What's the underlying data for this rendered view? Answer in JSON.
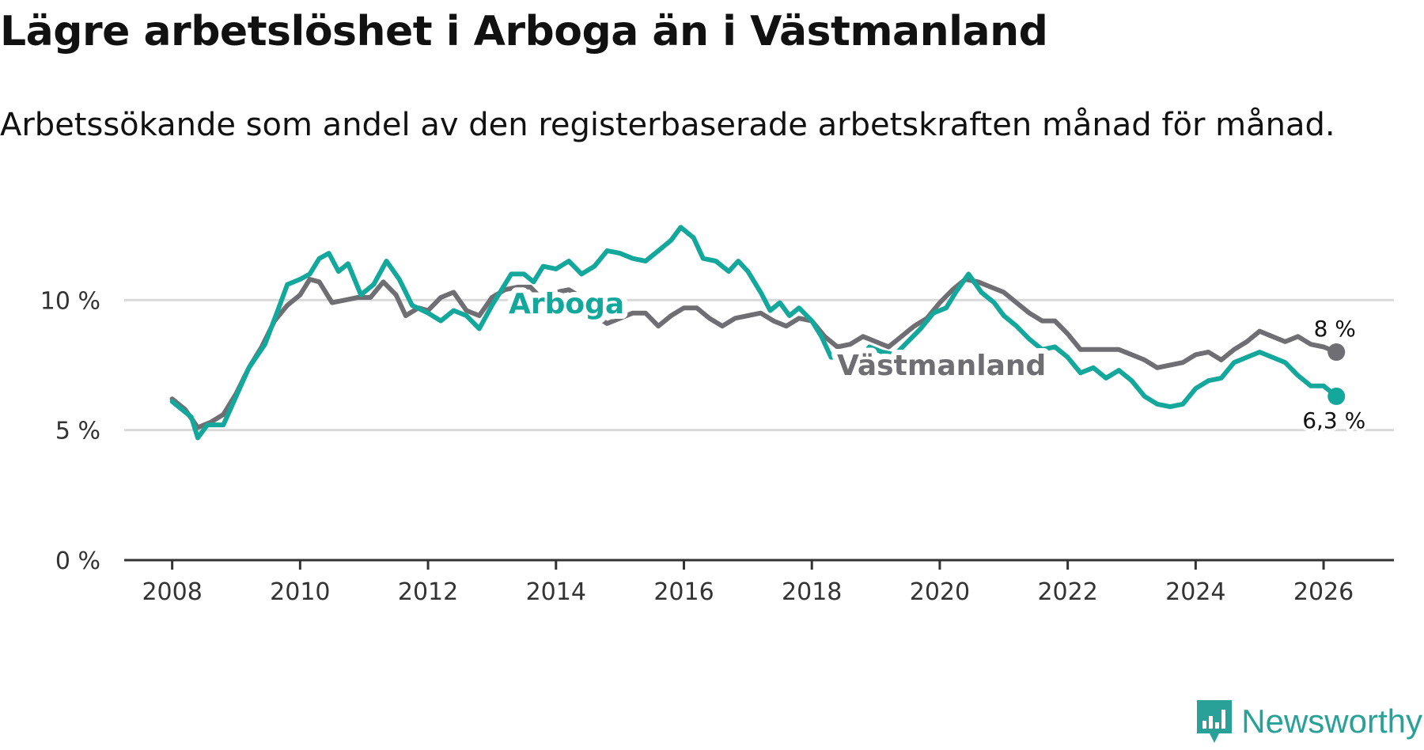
{
  "title": "Lägre arbetslöshet i Arboga än i Västmanland",
  "subtitle": "Arbetssökande som andel av den registerbaserade arbetskraften månad för månad.",
  "brand": {
    "name": "Newsworthy",
    "color": "#2aa198"
  },
  "colors": {
    "arboga": "#14a89c",
    "vastmanland": "#6f6e73",
    "grid": "#d9d9d9",
    "axis": "#333333"
  },
  "chart_data": {
    "type": "line",
    "title": "Lägre arbetslöshet i Arboga än i Västmanland",
    "subtitle": "Arbetssökande som andel av den registerbaserade arbetskraften månad för månad.",
    "xlabel": "",
    "ylabel": "",
    "xlim": [
      2007.25,
      2027.1
    ],
    "ylim": [
      0,
      11.5
    ],
    "y_ticks": [
      {
        "value": 0,
        "label": "0 %"
      },
      {
        "value": 5,
        "label": "5 %"
      },
      {
        "value": 10,
        "label": "10 %"
      }
    ],
    "x_ticks": [
      {
        "value": 2008,
        "label": "2008"
      },
      {
        "value": 2010,
        "label": "2010"
      },
      {
        "value": 2012,
        "label": "2012"
      },
      {
        "value": 2014,
        "label": "2014"
      },
      {
        "value": 2016,
        "label": "2016"
      },
      {
        "value": 2018,
        "label": "2018"
      },
      {
        "value": 2020,
        "label": "2020"
      },
      {
        "value": 2022,
        "label": "2022"
      },
      {
        "value": 2024,
        "label": "2024"
      },
      {
        "value": 2026,
        "label": "2026"
      }
    ],
    "grid": true,
    "series": [
      {
        "name": "Arboga",
        "label": "Arboga",
        "end_label": "6,3 %",
        "points": [
          [
            2008.0,
            6.1
          ],
          [
            2008.15,
            5.8
          ],
          [
            2008.3,
            5.5
          ],
          [
            2008.4,
            4.7
          ],
          [
            2008.55,
            5.2
          ],
          [
            2008.8,
            5.2
          ],
          [
            2009.0,
            6.3
          ],
          [
            2009.2,
            7.4
          ],
          [
            2009.45,
            8.3
          ],
          [
            2009.65,
            9.6
          ],
          [
            2009.8,
            10.6
          ],
          [
            2010.0,
            10.8
          ],
          [
            2010.15,
            11.0
          ],
          [
            2010.3,
            11.6
          ],
          [
            2010.45,
            11.8
          ],
          [
            2010.6,
            11.1
          ],
          [
            2010.75,
            11.4
          ],
          [
            2010.95,
            10.2
          ],
          [
            2011.15,
            10.6
          ],
          [
            2011.35,
            11.5
          ],
          [
            2011.55,
            10.8
          ],
          [
            2011.75,
            9.8
          ],
          [
            2012.0,
            9.5
          ],
          [
            2012.2,
            9.2
          ],
          [
            2012.4,
            9.6
          ],
          [
            2012.6,
            9.4
          ],
          [
            2012.8,
            8.9
          ],
          [
            2013.0,
            9.8
          ],
          [
            2013.15,
            10.4
          ],
          [
            2013.3,
            11.0
          ],
          [
            2013.5,
            11.0
          ],
          [
            2013.65,
            10.7
          ],
          [
            2013.8,
            11.3
          ],
          [
            2014.0,
            11.2
          ],
          [
            2014.2,
            11.5
          ],
          [
            2014.4,
            11.0
          ],
          [
            2014.6,
            11.3
          ],
          [
            2014.8,
            11.9
          ],
          [
            2015.0,
            11.8
          ],
          [
            2015.2,
            11.6
          ],
          [
            2015.4,
            11.5
          ],
          [
            2015.6,
            11.9
          ],
          [
            2015.8,
            12.3
          ],
          [
            2015.95,
            12.8
          ],
          [
            2016.15,
            12.4
          ],
          [
            2016.3,
            11.6
          ],
          [
            2016.5,
            11.5
          ],
          [
            2016.7,
            11.1
          ],
          [
            2016.85,
            11.5
          ],
          [
            2017.0,
            11.1
          ],
          [
            2017.2,
            10.3
          ],
          [
            2017.35,
            9.6
          ],
          [
            2017.5,
            9.9
          ],
          [
            2017.65,
            9.4
          ],
          [
            2017.8,
            9.7
          ],
          [
            2018.0,
            9.2
          ],
          [
            2018.15,
            8.6
          ],
          [
            2018.3,
            7.8
          ],
          [
            2018.5,
            7.8
          ],
          [
            2018.7,
            7.6
          ],
          [
            2018.9,
            8.2
          ],
          [
            2019.1,
            8.0
          ],
          [
            2019.3,
            7.9
          ],
          [
            2019.5,
            8.4
          ],
          [
            2019.7,
            8.9
          ],
          [
            2019.9,
            9.5
          ],
          [
            2020.1,
            9.7
          ],
          [
            2020.25,
            10.3
          ],
          [
            2020.45,
            11.0
          ],
          [
            2020.65,
            10.3
          ],
          [
            2020.85,
            9.9
          ],
          [
            2021.0,
            9.4
          ],
          [
            2021.2,
            9.0
          ],
          [
            2021.4,
            8.5
          ],
          [
            2021.6,
            8.1
          ],
          [
            2021.8,
            8.2
          ],
          [
            2022.0,
            7.8
          ],
          [
            2022.2,
            7.2
          ],
          [
            2022.4,
            7.4
          ],
          [
            2022.6,
            7.0
          ],
          [
            2022.8,
            7.3
          ],
          [
            2023.0,
            6.9
          ],
          [
            2023.2,
            6.3
          ],
          [
            2023.4,
            6.0
          ],
          [
            2023.6,
            5.9
          ],
          [
            2023.8,
            6.0
          ],
          [
            2024.0,
            6.6
          ],
          [
            2024.2,
            6.9
          ],
          [
            2024.4,
            7.0
          ],
          [
            2024.6,
            7.6
          ],
          [
            2024.8,
            7.8
          ],
          [
            2025.0,
            8.0
          ],
          [
            2025.2,
            7.8
          ],
          [
            2025.4,
            7.6
          ],
          [
            2025.6,
            7.1
          ],
          [
            2025.8,
            6.7
          ],
          [
            2026.0,
            6.7
          ],
          [
            2026.2,
            6.3
          ]
        ]
      },
      {
        "name": "Västmanland",
        "label": "Västmanland",
        "end_label": "8 %",
        "points": [
          [
            2008.0,
            6.2
          ],
          [
            2008.2,
            5.8
          ],
          [
            2008.4,
            5.1
          ],
          [
            2008.6,
            5.3
          ],
          [
            2008.8,
            5.6
          ],
          [
            2009.0,
            6.4
          ],
          [
            2009.2,
            7.4
          ],
          [
            2009.4,
            8.2
          ],
          [
            2009.6,
            9.2
          ],
          [
            2009.8,
            9.8
          ],
          [
            2010.0,
            10.2
          ],
          [
            2010.15,
            10.8
          ],
          [
            2010.3,
            10.7
          ],
          [
            2010.5,
            9.9
          ],
          [
            2010.7,
            10.0
          ],
          [
            2010.9,
            10.1
          ],
          [
            2011.1,
            10.1
          ],
          [
            2011.3,
            10.7
          ],
          [
            2011.5,
            10.2
          ],
          [
            2011.65,
            9.4
          ],
          [
            2011.85,
            9.7
          ],
          [
            2012.0,
            9.6
          ],
          [
            2012.2,
            10.1
          ],
          [
            2012.4,
            10.3
          ],
          [
            2012.6,
            9.6
          ],
          [
            2012.8,
            9.4
          ],
          [
            2013.0,
            10.1
          ],
          [
            2013.2,
            10.4
          ],
          [
            2013.4,
            10.5
          ],
          [
            2013.6,
            10.5
          ],
          [
            2013.8,
            10.0
          ],
          [
            2014.0,
            10.3
          ],
          [
            2014.2,
            10.4
          ],
          [
            2014.4,
            10.1
          ],
          [
            2014.6,
            9.4
          ],
          [
            2014.8,
            9.1
          ],
          [
            2015.0,
            9.3
          ],
          [
            2015.2,
            9.5
          ],
          [
            2015.4,
            9.5
          ],
          [
            2015.6,
            9.0
          ],
          [
            2015.8,
            9.4
          ],
          [
            2016.0,
            9.7
          ],
          [
            2016.2,
            9.7
          ],
          [
            2016.4,
            9.3
          ],
          [
            2016.6,
            9.0
          ],
          [
            2016.8,
            9.3
          ],
          [
            2017.0,
            9.4
          ],
          [
            2017.2,
            9.5
          ],
          [
            2017.4,
            9.2
          ],
          [
            2017.6,
            9.0
          ],
          [
            2017.8,
            9.3
          ],
          [
            2018.0,
            9.2
          ],
          [
            2018.2,
            8.6
          ],
          [
            2018.4,
            8.2
          ],
          [
            2018.6,
            8.3
          ],
          [
            2018.8,
            8.6
          ],
          [
            2019.0,
            8.4
          ],
          [
            2019.2,
            8.2
          ],
          [
            2019.4,
            8.6
          ],
          [
            2019.6,
            9.0
          ],
          [
            2019.8,
            9.3
          ],
          [
            2020.0,
            9.9
          ],
          [
            2020.2,
            10.4
          ],
          [
            2020.4,
            10.8
          ],
          [
            2020.6,
            10.7
          ],
          [
            2020.8,
            10.5
          ],
          [
            2021.0,
            10.3
          ],
          [
            2021.2,
            9.9
          ],
          [
            2021.4,
            9.5
          ],
          [
            2021.6,
            9.2
          ],
          [
            2021.8,
            9.2
          ],
          [
            2022.0,
            8.7
          ],
          [
            2022.2,
            8.1
          ],
          [
            2022.4,
            8.1
          ],
          [
            2022.6,
            8.1
          ],
          [
            2022.8,
            8.1
          ],
          [
            2023.0,
            7.9
          ],
          [
            2023.2,
            7.7
          ],
          [
            2023.4,
            7.4
          ],
          [
            2023.6,
            7.5
          ],
          [
            2023.8,
            7.6
          ],
          [
            2024.0,
            7.9
          ],
          [
            2024.2,
            8.0
          ],
          [
            2024.4,
            7.7
          ],
          [
            2024.6,
            8.1
          ],
          [
            2024.8,
            8.4
          ],
          [
            2025.0,
            8.8
          ],
          [
            2025.2,
            8.6
          ],
          [
            2025.4,
            8.4
          ],
          [
            2025.6,
            8.6
          ],
          [
            2025.8,
            8.3
          ],
          [
            2026.0,
            8.2
          ],
          [
            2026.2,
            8.0
          ]
        ]
      }
    ]
  }
}
